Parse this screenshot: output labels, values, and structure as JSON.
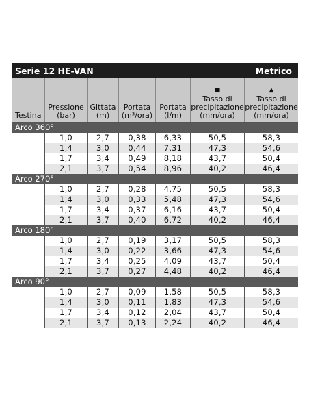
{
  "table": {
    "title": "Serie 12 HE-VAN",
    "units": "Metrico",
    "headers": {
      "testina": "Testina",
      "pressione": [
        "Pressione",
        "(bar)"
      ],
      "gittata": [
        "Gittata",
        "(m)"
      ],
      "portata_m3": [
        "Portata",
        "(m³/ora)"
      ],
      "portata_lm": [
        "Portata",
        "(l/m)"
      ],
      "tasso_square": [
        "Tasso di",
        "precipitazione",
        "(mm/ora)"
      ],
      "tasso_triangle": [
        "Tasso di",
        "precipitazione",
        "(mm/ora)"
      ]
    },
    "symbols": {
      "square": "■",
      "triangle": "▲"
    },
    "groups": [
      {
        "label": "Arco 360°",
        "rows": [
          [
            "1,0",
            "2,7",
            "0,38",
            "6,33",
            "50,5",
            "58,3"
          ],
          [
            "1,4",
            "3,0",
            "0,44",
            "7,31",
            "47,3",
            "54,6"
          ],
          [
            "1,7",
            "3,4",
            "0,49",
            "8,18",
            "43,7",
            "50,4"
          ],
          [
            "2,1",
            "3,7",
            "0,54",
            "8,96",
            "40,2",
            "46,4"
          ]
        ]
      },
      {
        "label": "Arco 270°",
        "rows": [
          [
            "1,0",
            "2,7",
            "0,28",
            "4,75",
            "50,5",
            "58,3"
          ],
          [
            "1,4",
            "3,0",
            "0,33",
            "5,48",
            "47,3",
            "54,6"
          ],
          [
            "1,7",
            "3,4",
            "0,37",
            "6,16",
            "43,7",
            "50,4"
          ],
          [
            "2,1",
            "3,7",
            "0,40",
            "6,72",
            "40,2",
            "46,4"
          ]
        ]
      },
      {
        "label": "Arco 180°",
        "rows": [
          [
            "1,0",
            "2,7",
            "0,19",
            "3,17",
            "50,5",
            "58,3"
          ],
          [
            "1,4",
            "3,0",
            "0,22",
            "3,66",
            "47,3",
            "54,6"
          ],
          [
            "1,7",
            "3,4",
            "0,25",
            "4,09",
            "43,7",
            "50,4"
          ],
          [
            "2,1",
            "3,7",
            "0,27",
            "4,48",
            "40,2",
            "46,4"
          ]
        ]
      },
      {
        "label": "Arco 90°",
        "rows": [
          [
            "1,0",
            "2,7",
            "0,09",
            "1,58",
            "50,5",
            "58,3"
          ],
          [
            "1,4",
            "3,0",
            "0,11",
            "1,83",
            "47,3",
            "54,6"
          ],
          [
            "1,7",
            "3,4",
            "0,12",
            "2,04",
            "43,7",
            "50,4"
          ],
          [
            "2,1",
            "3,7",
            "0,13",
            "2,24",
            "40,2",
            "46,4"
          ]
        ]
      }
    ]
  }
}
